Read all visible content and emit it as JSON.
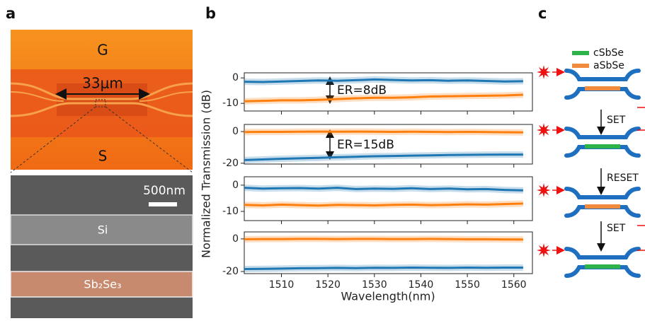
{
  "panel_labels": [
    "a",
    "b",
    "c"
  ],
  "micrograph": {
    "labels": [
      "G",
      "33μm",
      "S"
    ]
  },
  "sem": {
    "scale_bar": "500nm",
    "labels": [
      "Si",
      "Sb₂Se₃"
    ]
  },
  "plot": {
    "xlabel": "Wavelength(nm)",
    "ylabel": "Normalized Transmission (dB)"
  },
  "chart_data": [
    {
      "type": "line",
      "annotation": "ER=8dB",
      "x": [
        1502,
        1506,
        1510,
        1514,
        1518,
        1522,
        1526,
        1530,
        1534,
        1538,
        1542,
        1546,
        1550,
        1554,
        1558,
        1562
      ],
      "xlim": [
        1502,
        1564
      ],
      "xticks": [
        1510,
        1520,
        1530,
        1540,
        1550,
        1560
      ],
      "ylim": [
        -13,
        2
      ],
      "yticks": [
        -10,
        0
      ],
      "series": [
        {
          "color": "#1f77b4",
          "values": [
            -1.5,
            -1.6,
            -1.4,
            -1.2,
            -1.0,
            -1.1,
            -0.9,
            -0.6,
            -0.8,
            -1.0,
            -0.9,
            -1.1,
            -1.0,
            -1.2,
            -1.4,
            -1.3
          ]
        },
        {
          "color": "#ff7f0e",
          "values": [
            -9.2,
            -9.0,
            -8.8,
            -8.8,
            -8.6,
            -8.3,
            -8.0,
            -7.8,
            -7.8,
            -7.6,
            -7.3,
            -7.2,
            -7.1,
            -7.0,
            -6.9,
            -6.6
          ]
        }
      ]
    },
    {
      "type": "line",
      "annotation": "ER=15dB",
      "x": [
        1502,
        1506,
        1510,
        1514,
        1518,
        1522,
        1526,
        1530,
        1534,
        1538,
        1542,
        1546,
        1550,
        1554,
        1558,
        1562
      ],
      "xlim": [
        1502,
        1564
      ],
      "xticks": [
        1510,
        1520,
        1530,
        1540,
        1550,
        1560
      ],
      "ylim": [
        -20.5,
        4.5
      ],
      "yticks": [
        -20,
        0
      ],
      "series": [
        {
          "color": "#1f77b4",
          "values": [
            -18.0,
            -17.6,
            -17.2,
            -16.9,
            -16.6,
            -16.2,
            -15.9,
            -15.6,
            -15.4,
            -15.2,
            -15.0,
            -14.8,
            -14.7,
            -14.6,
            -14.5,
            -14.5
          ]
        },
        {
          "color": "#ff7f0e",
          "values": [
            -0.3,
            -0.2,
            -0.2,
            -0.1,
            0,
            -0.1,
            0,
            -0.1,
            -0.2,
            -0.1,
            -0.2,
            -0.3,
            -0.2,
            -0.3,
            -0.4,
            -0.5
          ]
        }
      ]
    },
    {
      "type": "line",
      "x": [
        1502,
        1506,
        1510,
        1514,
        1518,
        1522,
        1526,
        1530,
        1534,
        1538,
        1542,
        1546,
        1550,
        1554,
        1558,
        1562
      ],
      "xlim": [
        1502,
        1564
      ],
      "xticks": [
        1510,
        1520,
        1530,
        1540,
        1550,
        1560
      ],
      "ylim": [
        -13.5,
        3.2
      ],
      "yticks": [
        -10,
        0
      ],
      "series": [
        {
          "color": "#1f77b4",
          "values": [
            -1.0,
            -1.3,
            -1.2,
            -1.1,
            -1.3,
            -1.0,
            -1.5,
            -1.3,
            -1.4,
            -1.2,
            -1.5,
            -1.3,
            -1.6,
            -1.5,
            -1.8,
            -2.0
          ]
        },
        {
          "color": "#ff7f0e",
          "values": [
            -7.5,
            -7.7,
            -7.4,
            -7.6,
            -7.8,
            -7.5,
            -7.6,
            -7.7,
            -7.5,
            -7.4,
            -7.6,
            -7.5,
            -7.3,
            -7.4,
            -7.2,
            -7.0
          ]
        }
      ]
    },
    {
      "type": "line",
      "x": [
        1502,
        1506,
        1510,
        1514,
        1518,
        1522,
        1526,
        1530,
        1534,
        1538,
        1542,
        1546,
        1550,
        1554,
        1558,
        1562
      ],
      "xlim": [
        1502,
        1564
      ],
      "xticks": [
        1510,
        1520,
        1530,
        1540,
        1550,
        1560
      ],
      "ylim": [
        -21.3,
        4.3
      ],
      "yticks": [
        -20,
        0
      ],
      "series": [
        {
          "color": "#1f77b4",
          "values": [
            -18.5,
            -18.4,
            -18.2,
            -18.0,
            -17.9,
            -17.8,
            -17.9,
            -17.7,
            -17.8,
            -17.6,
            -17.7,
            -17.8,
            -17.6,
            -17.7,
            -17.6,
            -17.6
          ]
        },
        {
          "color": "#ff7f0e",
          "values": [
            -0.2,
            -0.1,
            -0.1,
            0,
            0,
            -0.1,
            0,
            0,
            -0.1,
            -0.1,
            0,
            -0.1,
            -0.2,
            -0.2,
            -0.3,
            -0.4
          ]
        }
      ]
    }
  ],
  "schematic": {
    "legend": [
      {
        "name": "cSbSe",
        "color": "#2db34a"
      },
      {
        "name": "aSbSe",
        "color": "#f08a3c"
      }
    ],
    "steps": [
      "SET",
      "RESET",
      "SET"
    ]
  }
}
